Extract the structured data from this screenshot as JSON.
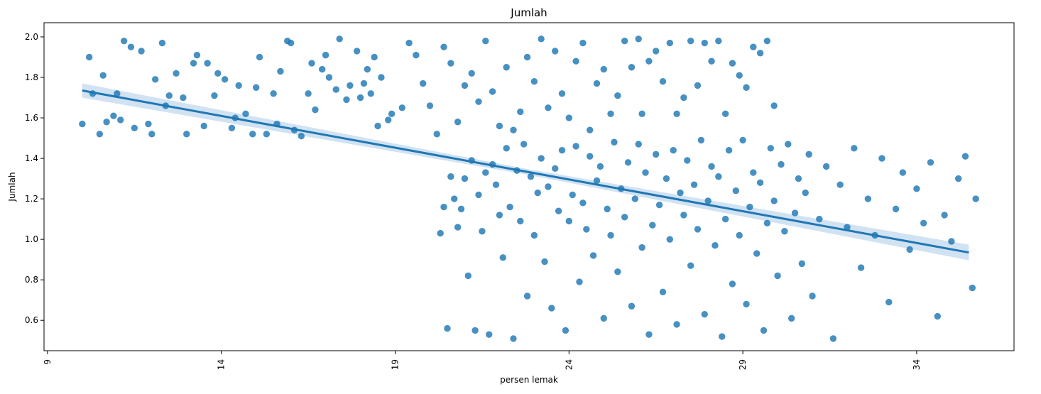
{
  "chart_data": {
    "type": "scatter",
    "title": "Jumlah",
    "xlabel": "persen lemak",
    "ylabel": "Jumlah",
    "xlim": [
      8.9,
      36.8
    ],
    "ylim": [
      0.45,
      2.07
    ],
    "xticks": [
      9,
      14,
      19,
      24,
      29,
      34
    ],
    "yticks": [
      0.6,
      0.8,
      1.0,
      1.2,
      1.4,
      1.6,
      1.8,
      2.0
    ],
    "xtick_labels": [
      "9",
      "14",
      "19",
      "24",
      "29",
      "34"
    ],
    "ytick_labels": [
      "0.6",
      "0.8",
      "1.0",
      "1.2",
      "1.4",
      "1.6",
      "1.8",
      "2.0"
    ],
    "grid": false,
    "point_color": "#1f77b4",
    "regression": {
      "x_start": 10.0,
      "y_start": 1.735,
      "x_end": 35.5,
      "y_end": 0.935,
      "ci_color": "#c6dbef"
    },
    "series": [
      {
        "values": [
          [
            10.0,
            1.57
          ],
          [
            10.2,
            1.9
          ],
          [
            10.3,
            1.72
          ],
          [
            10.5,
            1.52
          ],
          [
            10.6,
            1.81
          ],
          [
            10.7,
            1.58
          ],
          [
            10.9,
            1.61
          ],
          [
            11.0,
            1.72
          ],
          [
            11.1,
            1.59
          ],
          [
            11.2,
            1.98
          ],
          [
            11.4,
            1.95
          ],
          [
            11.5,
            1.55
          ],
          [
            11.7,
            1.93
          ],
          [
            11.9,
            1.57
          ],
          [
            12.0,
            1.52
          ],
          [
            12.1,
            1.79
          ],
          [
            12.3,
            1.97
          ],
          [
            12.4,
            1.66
          ],
          [
            12.5,
            1.71
          ],
          [
            12.7,
            1.82
          ],
          [
            12.9,
            1.7
          ],
          [
            13.0,
            1.52
          ],
          [
            13.2,
            1.87
          ],
          [
            13.3,
            1.91
          ],
          [
            13.5,
            1.56
          ],
          [
            13.6,
            1.87
          ],
          [
            13.8,
            1.71
          ],
          [
            13.9,
            1.82
          ],
          [
            14.1,
            1.79
          ],
          [
            14.3,
            1.55
          ],
          [
            14.4,
            1.6
          ],
          [
            14.5,
            1.76
          ],
          [
            14.7,
            1.62
          ],
          [
            14.9,
            1.52
          ],
          [
            15.0,
            1.75
          ],
          [
            15.1,
            1.9
          ],
          [
            15.3,
            1.52
          ],
          [
            15.5,
            1.72
          ],
          [
            15.6,
            1.57
          ],
          [
            15.7,
            1.83
          ],
          [
            15.9,
            1.98
          ],
          [
            16.0,
            1.97
          ],
          [
            16.1,
            1.54
          ],
          [
            16.3,
            1.51
          ],
          [
            16.5,
            1.72
          ],
          [
            16.6,
            1.87
          ],
          [
            16.7,
            1.64
          ],
          [
            16.9,
            1.84
          ],
          [
            17.0,
            1.91
          ],
          [
            17.1,
            1.8
          ],
          [
            17.3,
            1.74
          ],
          [
            17.4,
            1.99
          ],
          [
            17.6,
            1.69
          ],
          [
            17.7,
            1.76
          ],
          [
            17.9,
            1.93
          ],
          [
            18.0,
            1.7
          ],
          [
            18.1,
            1.77
          ],
          [
            18.2,
            1.84
          ],
          [
            18.3,
            1.72
          ],
          [
            18.4,
            1.9
          ],
          [
            18.5,
            1.56
          ],
          [
            18.6,
            1.8
          ],
          [
            18.8,
            1.59
          ],
          [
            18.9,
            1.62
          ],
          [
            19.2,
            1.65
          ],
          [
            19.4,
            1.97
          ],
          [
            19.6,
            1.91
          ],
          [
            19.8,
            1.77
          ],
          [
            20.0,
            1.66
          ],
          [
            20.2,
            1.52
          ],
          [
            20.4,
            1.95
          ],
          [
            20.6,
            1.87
          ],
          [
            20.8,
            1.58
          ],
          [
            21.0,
            1.76
          ],
          [
            21.2,
            1.82
          ],
          [
            21.4,
            1.68
          ],
          [
            21.6,
            1.98
          ],
          [
            21.8,
            1.73
          ],
          [
            22.0,
            1.56
          ],
          [
            22.2,
            1.85
          ],
          [
            22.4,
            1.54
          ],
          [
            22.6,
            1.63
          ],
          [
            22.8,
            1.9
          ],
          [
            23.0,
            1.78
          ],
          [
            23.2,
            1.99
          ],
          [
            23.4,
            1.65
          ],
          [
            23.6,
            1.93
          ],
          [
            23.8,
            1.72
          ],
          [
            24.0,
            1.6
          ],
          [
            24.2,
            1.88
          ],
          [
            24.4,
            1.97
          ],
          [
            24.6,
            1.54
          ],
          [
            24.8,
            1.77
          ],
          [
            25.0,
            1.84
          ],
          [
            25.2,
            1.62
          ],
          [
            25.4,
            1.71
          ],
          [
            25.6,
            1.98
          ],
          [
            25.8,
            1.85
          ],
          [
            26.0,
            1.99
          ],
          [
            26.1,
            1.62
          ],
          [
            26.3,
            1.88
          ],
          [
            26.5,
            1.93
          ],
          [
            26.7,
            1.78
          ],
          [
            26.9,
            1.97
          ],
          [
            27.1,
            1.62
          ],
          [
            27.3,
            1.7
          ],
          [
            27.5,
            1.98
          ],
          [
            27.7,
            1.76
          ],
          [
            27.9,
            1.97
          ],
          [
            28.1,
            1.88
          ],
          [
            28.3,
            1.98
          ],
          [
            28.5,
            1.62
          ],
          [
            28.7,
            1.87
          ],
          [
            28.9,
            1.81
          ],
          [
            29.1,
            1.75
          ],
          [
            29.3,
            1.95
          ],
          [
            29.5,
            1.92
          ],
          [
            29.7,
            1.98
          ],
          [
            29.9,
            1.66
          ]
        ]
      },
      {
        "values": [
          [
            20.3,
            1.03
          ],
          [
            20.4,
            1.16
          ],
          [
            20.5,
            0.56
          ],
          [
            20.6,
            1.31
          ],
          [
            20.7,
            1.2
          ],
          [
            20.8,
            1.06
          ],
          [
            20.9,
            1.15
          ],
          [
            21.0,
            1.3
          ],
          [
            21.1,
            0.82
          ],
          [
            21.2,
            1.39
          ],
          [
            21.3,
            0.55
          ],
          [
            21.4,
            1.22
          ],
          [
            21.5,
            1.04
          ],
          [
            21.6,
            1.33
          ],
          [
            21.7,
            0.53
          ],
          [
            21.8,
            1.37
          ],
          [
            21.9,
            1.27
          ],
          [
            22.0,
            1.12
          ],
          [
            22.1,
            0.91
          ],
          [
            22.2,
            1.45
          ],
          [
            22.3,
            1.16
          ],
          [
            22.4,
            0.51
          ],
          [
            22.5,
            1.34
          ],
          [
            22.6,
            1.09
          ],
          [
            22.7,
            1.47
          ],
          [
            22.8,
            0.72
          ],
          [
            22.9,
            1.31
          ],
          [
            23.0,
            1.02
          ],
          [
            23.1,
            1.23
          ],
          [
            23.2,
            1.4
          ],
          [
            23.3,
            0.89
          ],
          [
            23.4,
            1.26
          ],
          [
            23.5,
            0.66
          ],
          [
            23.6,
            1.35
          ],
          [
            23.7,
            1.14
          ],
          [
            23.8,
            1.44
          ],
          [
            23.9,
            0.55
          ],
          [
            24.0,
            1.09
          ],
          [
            24.1,
            1.22
          ],
          [
            24.2,
            1.46
          ],
          [
            24.3,
            0.79
          ],
          [
            24.4,
            1.18
          ],
          [
            24.5,
            1.05
          ],
          [
            24.6,
            1.41
          ],
          [
            24.7,
            0.92
          ],
          [
            24.8,
            1.29
          ],
          [
            24.9,
            1.36
          ],
          [
            25.0,
            0.61
          ],
          [
            25.1,
            1.15
          ],
          [
            25.2,
            1.02
          ],
          [
            25.3,
            1.48
          ],
          [
            25.4,
            0.84
          ],
          [
            25.5,
            1.25
          ],
          [
            25.6,
            1.11
          ],
          [
            25.7,
            1.38
          ],
          [
            25.8,
            0.67
          ],
          [
            25.9,
            1.2
          ],
          [
            26.0,
            1.47
          ],
          [
            26.1,
            0.96
          ],
          [
            26.2,
            1.33
          ],
          [
            26.3,
            0.53
          ],
          [
            26.4,
            1.07
          ],
          [
            26.5,
            1.42
          ],
          [
            26.6,
            1.17
          ],
          [
            26.7,
            0.74
          ],
          [
            26.8,
            1.3
          ],
          [
            26.9,
            1.0
          ],
          [
            27.0,
            1.44
          ],
          [
            27.1,
            0.58
          ],
          [
            27.2,
            1.23
          ],
          [
            27.3,
            1.12
          ],
          [
            27.4,
            1.39
          ],
          [
            27.5,
            0.87
          ],
          [
            27.6,
            1.27
          ],
          [
            27.7,
            1.05
          ],
          [
            27.8,
            1.49
          ],
          [
            27.9,
            0.63
          ],
          [
            28.0,
            1.19
          ],
          [
            28.1,
            1.36
          ],
          [
            28.2,
            0.97
          ],
          [
            28.3,
            1.31
          ],
          [
            28.4,
            0.52
          ],
          [
            28.5,
            1.1
          ],
          [
            28.6,
            1.44
          ],
          [
            28.7,
            0.78
          ],
          [
            28.8,
            1.24
          ],
          [
            28.9,
            1.02
          ],
          [
            29.0,
            1.49
          ],
          [
            29.1,
            0.68
          ],
          [
            29.2,
            1.16
          ],
          [
            29.3,
            1.33
          ],
          [
            29.4,
            0.93
          ],
          [
            29.5,
            1.28
          ],
          [
            29.6,
            0.55
          ],
          [
            29.7,
            1.08
          ],
          [
            29.8,
            1.45
          ],
          [
            29.9,
            1.19
          ],
          [
            30.0,
            0.82
          ],
          [
            30.1,
            1.37
          ],
          [
            30.2,
            1.04
          ],
          [
            30.3,
            1.47
          ],
          [
            30.4,
            0.61
          ],
          [
            30.5,
            1.13
          ],
          [
            30.6,
            1.3
          ],
          [
            30.7,
            0.88
          ],
          [
            30.8,
            1.23
          ],
          [
            30.9,
            1.42
          ],
          [
            31.0,
            0.72
          ],
          [
            31.2,
            1.1
          ],
          [
            31.4,
            1.36
          ],
          [
            31.6,
            0.51
          ],
          [
            31.8,
            1.27
          ],
          [
            32.0,
            1.06
          ],
          [
            32.2,
            1.45
          ],
          [
            32.4,
            0.86
          ],
          [
            32.6,
            1.2
          ],
          [
            32.8,
            1.02
          ],
          [
            33.0,
            1.4
          ],
          [
            33.2,
            0.69
          ],
          [
            33.4,
            1.15
          ],
          [
            33.6,
            1.33
          ],
          [
            33.8,
            0.95
          ],
          [
            34.0,
            1.25
          ],
          [
            34.2,
            1.08
          ],
          [
            34.4,
            1.38
          ],
          [
            34.6,
            0.62
          ],
          [
            34.8,
            1.12
          ],
          [
            35.0,
            0.99
          ],
          [
            35.2,
            1.3
          ],
          [
            35.4,
            1.41
          ],
          [
            35.6,
            0.76
          ],
          [
            35.7,
            1.2
          ]
        ]
      }
    ]
  }
}
